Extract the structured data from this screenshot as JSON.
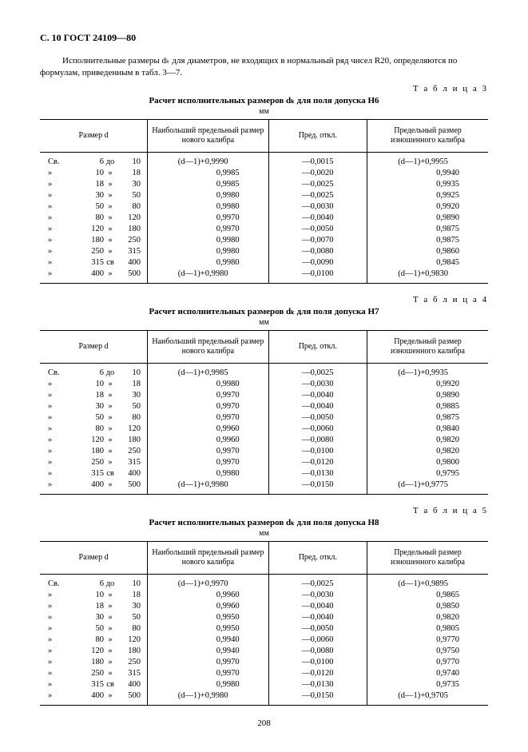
{
  "header": "С. 10 ГОСТ 24109—80",
  "intro": "Исполнительные размеры dₖ для диаметров, не входящих в нормальный ряд чисел R20, определяются по формулам, приведенным в табл. 3—7.",
  "page_number": "208",
  "columns": {
    "size": "Размер d",
    "max": "Наибольший предельный размер нового калибра",
    "dev": "Пред. откл.",
    "worn": "Предельный размер изношенного калибра"
  },
  "size_rows": [
    {
      "lbl": "Св.",
      "a": "6",
      "sep": "до",
      "b": "10"
    },
    {
      "lbl": "»",
      "a": "10",
      "sep": "»",
      "b": "18"
    },
    {
      "lbl": "»",
      "a": "18",
      "sep": "»",
      "b": "30"
    },
    {
      "lbl": "»",
      "a": "30",
      "sep": "»",
      "b": "50"
    },
    {
      "lbl": "»",
      "a": "50",
      "sep": "»",
      "b": "80"
    },
    {
      "lbl": "»",
      "a": "80",
      "sep": "»",
      "b": "120"
    },
    {
      "lbl": "»",
      "a": "120",
      "sep": "»",
      "b": "180"
    },
    {
      "lbl": "»",
      "a": "180",
      "sep": "»",
      "b": "250"
    },
    {
      "lbl": "»",
      "a": "250",
      "sep": "»",
      "b": "315"
    },
    {
      "lbl": "»",
      "a": "315",
      "sep": "св",
      "b": "400"
    },
    {
      "lbl": "»",
      "a": "400",
      "sep": "»",
      "b": "500"
    }
  ],
  "tables": [
    {
      "num": "Т а б л и ц а  3",
      "title": "Расчет исполнительных размеров dₖ для поля допуска H6",
      "unit": "мм",
      "rows": [
        {
          "max": "(d—1)+0,9990",
          "dev": "—0,0015",
          "worn": "(d—1)+0,9955"
        },
        {
          "max": "0,9985",
          "dev": "—0,0020",
          "worn": "0,9940"
        },
        {
          "max": "0,9985",
          "dev": "—0,0025",
          "worn": "0,9935"
        },
        {
          "max": "0,9980",
          "dev": "—0,0025",
          "worn": "0,9925"
        },
        {
          "max": "0,9980",
          "dev": "—0,0030",
          "worn": "0,9920"
        },
        {
          "max": "0,9970",
          "dev": "—0,0040",
          "worn": "0,9890"
        },
        {
          "max": "0,9970",
          "dev": "—0,0050",
          "worn": "0,9875"
        },
        {
          "max": "0,9980",
          "dev": "—0,0070",
          "worn": "0,9875"
        },
        {
          "max": "0,9980",
          "dev": "—0,0080",
          "worn": "0,9860"
        },
        {
          "max": "0,9980",
          "dev": "—0,0090",
          "worn": "0,9845"
        },
        {
          "max": "(d—1)+0,9980",
          "dev": "—0,0100",
          "worn": "(d—1)+0,9830"
        }
      ]
    },
    {
      "num": "Т а б л и ц а  4",
      "title": "Расчет исполнительных размеров dₖ для поля допуска H7",
      "unit": "мм",
      "rows": [
        {
          "max": "(d—1)+0,9985",
          "dev": "—0,0025",
          "worn": "(d—1)+0,9935"
        },
        {
          "max": "0,9980",
          "dev": "—0,0030",
          "worn": "0,9920"
        },
        {
          "max": "0,9970",
          "dev": "—0,0040",
          "worn": "0,9890"
        },
        {
          "max": "0,9970",
          "dev": "—0,0040",
          "worn": "0,9885"
        },
        {
          "max": "0,9970",
          "dev": "—0,0050",
          "worn": "0,9875"
        },
        {
          "max": "0,9960",
          "dev": "—0,0060",
          "worn": "0,9840"
        },
        {
          "max": "0,9960",
          "dev": "—0,0080",
          "worn": "0,9820"
        },
        {
          "max": "0,9970",
          "dev": "—0,0100",
          "worn": "0,9820"
        },
        {
          "max": "0,9970",
          "dev": "—0,0120",
          "worn": "0,9800"
        },
        {
          "max": "0,9980",
          "dev": "—0,0130",
          "worn": "0,9795"
        },
        {
          "max": "(d—1)+0,9980",
          "dev": "—0,0150",
          "worn": "(d—1)+0,9775"
        }
      ]
    },
    {
      "num": "Т а б л и ц а  5",
      "title": "Расчет исполнительных размеров dₖ для поля допуска H8",
      "unit": "мм",
      "rows": [
        {
          "max": "(d—1)+0,9970",
          "dev": "—0,0025",
          "worn": "(d—1)+0,9895"
        },
        {
          "max": "0,9960",
          "dev": "—0,0030",
          "worn": "0,9865"
        },
        {
          "max": "0,9960",
          "dev": "—0,0040",
          "worn": "0,9850"
        },
        {
          "max": "0,9950",
          "dev": "—0,0040",
          "worn": "0,9820"
        },
        {
          "max": "0,9950",
          "dev": "—0,0050",
          "worn": "0,9805"
        },
        {
          "max": "0,9940",
          "dev": "—0,0060",
          "worn": "0,9770"
        },
        {
          "max": "0,9940",
          "dev": "—0,0080",
          "worn": "0,9750"
        },
        {
          "max": "0,9970",
          "dev": "—0,0100",
          "worn": "0,9770"
        },
        {
          "max": "0,9970",
          "dev": "—0,0120",
          "worn": "0,9740"
        },
        {
          "max": "0,9980",
          "dev": "—0,0130",
          "worn": "0,9735"
        },
        {
          "max": "(d—1)+0,9980",
          "dev": "—0,0150",
          "worn": "(d—1)+0,9705"
        }
      ]
    }
  ]
}
